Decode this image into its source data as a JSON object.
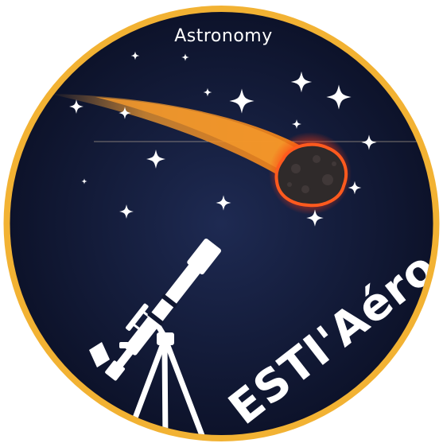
{
  "badge": {
    "top_label": "Astronomy",
    "main_label": "ESTI'Aéro"
  },
  "colors": {
    "ring": "#f2b233",
    "sky_center": "#1e2a52",
    "sky_edge": "#0b1026",
    "comet_tail": "#f08a1c",
    "comet_glow": "#ff4a1a",
    "meteor_body": "#2f2a2a",
    "stars": "#ffffff",
    "telescope": "#ffffff"
  },
  "icons": {
    "comet": "comet-icon",
    "telescope": "telescope-icon",
    "star": "star-icon"
  }
}
